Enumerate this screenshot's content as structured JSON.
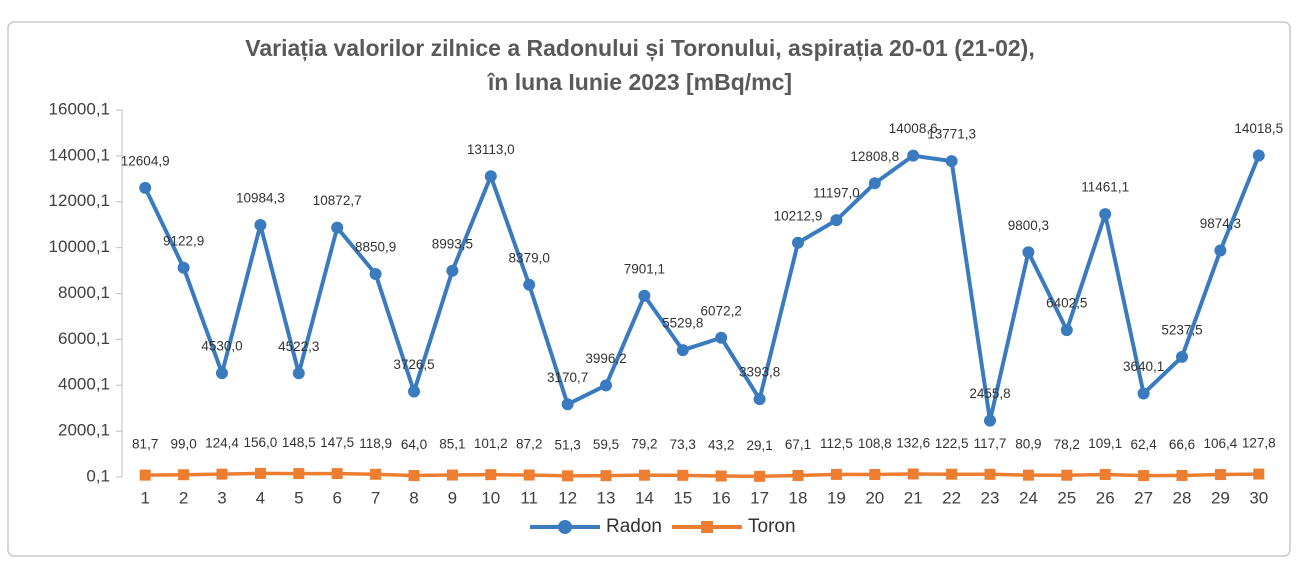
{
  "chart_data": {
    "type": "line",
    "title": [
      "Variația valorilor zilnice a Radonului și Toronului, aspirația 20-01 (21-02),",
      "în luna Iunie 2023 [mBq/mc]"
    ],
    "categories": [
      "1",
      "2",
      "3",
      "4",
      "5",
      "6",
      "7",
      "8",
      "9",
      "10",
      "11",
      "12",
      "13",
      "14",
      "15",
      "16",
      "17",
      "18",
      "19",
      "20",
      "21",
      "22",
      "23",
      "24",
      "25",
      "26",
      "27",
      "28",
      "29",
      "30"
    ],
    "ylim": [
      0.1,
      16000.1
    ],
    "yticks": [
      {
        "value": 0.1,
        "label": "0,1"
      },
      {
        "value": 2000.1,
        "label": "2000,1"
      },
      {
        "value": 4000.1,
        "label": "4000,1"
      },
      {
        "value": 6000.1,
        "label": "6000,1"
      },
      {
        "value": 8000.1,
        "label": "8000,1"
      },
      {
        "value": 10000.1,
        "label": "10000,1"
      },
      {
        "value": 12000.1,
        "label": "12000,1"
      },
      {
        "value": 14000.1,
        "label": "14000,1"
      },
      {
        "value": 16000.1,
        "label": "16000,1"
      }
    ],
    "legend": "bottom",
    "series": [
      {
        "name": "Radon",
        "color": "#3a7bbf",
        "marker": "circle",
        "values": [
          12604.9,
          9122.9,
          4530.0,
          10984.3,
          4522.3,
          10872.7,
          8850.9,
          3726.5,
          8993.5,
          13113.0,
          8379.0,
          3170.7,
          3996.2,
          7901.1,
          5529.8,
          6072.2,
          3393.8,
          10212.9,
          11197.0,
          12808.8,
          14008.6,
          13771.3,
          2455.8,
          9800.3,
          6402.5,
          11461.1,
          3640.1,
          5237.5,
          9874.3,
          14018.5
        ],
        "value_labels": [
          "12604,9",
          "9122,9",
          "4530,0",
          "10984,3",
          "4522,3",
          "10872,7",
          "8850,9",
          "3726,5",
          "8993,5",
          "13113,0",
          "8379,0",
          "3170,7",
          "3996,2",
          "7901,1",
          "5529,8",
          "6072,2",
          "3393,8",
          "10212,9",
          "11197,0",
          "12808,8",
          "14008,6",
          "13771,3",
          "2455,8",
          "9800,3",
          "6402,5",
          "11461,1",
          "3640,1",
          "5237,5",
          "9874,3",
          "14018,5"
        ]
      },
      {
        "name": "Toron",
        "color": "#ed7d31",
        "marker": "square",
        "values": [
          81.7,
          99.0,
          124.4,
          156.0,
          148.5,
          147.5,
          118.9,
          64.0,
          85.1,
          101.2,
          87.2,
          51.3,
          59.5,
          79.2,
          73.3,
          43.2,
          29.1,
          67.1,
          112.5,
          108.8,
          132.6,
          122.5,
          117.7,
          80.9,
          78.2,
          109.1,
          62.4,
          66.6,
          106.4,
          127.8
        ],
        "value_labels": [
          "81,7",
          "99,0",
          "124,4",
          "156,0",
          "148,5",
          "147,5",
          "118,9",
          "64,0",
          "85,1",
          "101,2",
          "87,2",
          "51,3",
          "59,5",
          "79,2",
          "73,3",
          "43,2",
          "29,1",
          "67,1",
          "112,5",
          "108,8",
          "132,6",
          "122,5",
          "117,7",
          "80,9",
          "78,2",
          "109,1",
          "62,4",
          "66,6",
          "106,4",
          "127,8"
        ]
      }
    ]
  }
}
